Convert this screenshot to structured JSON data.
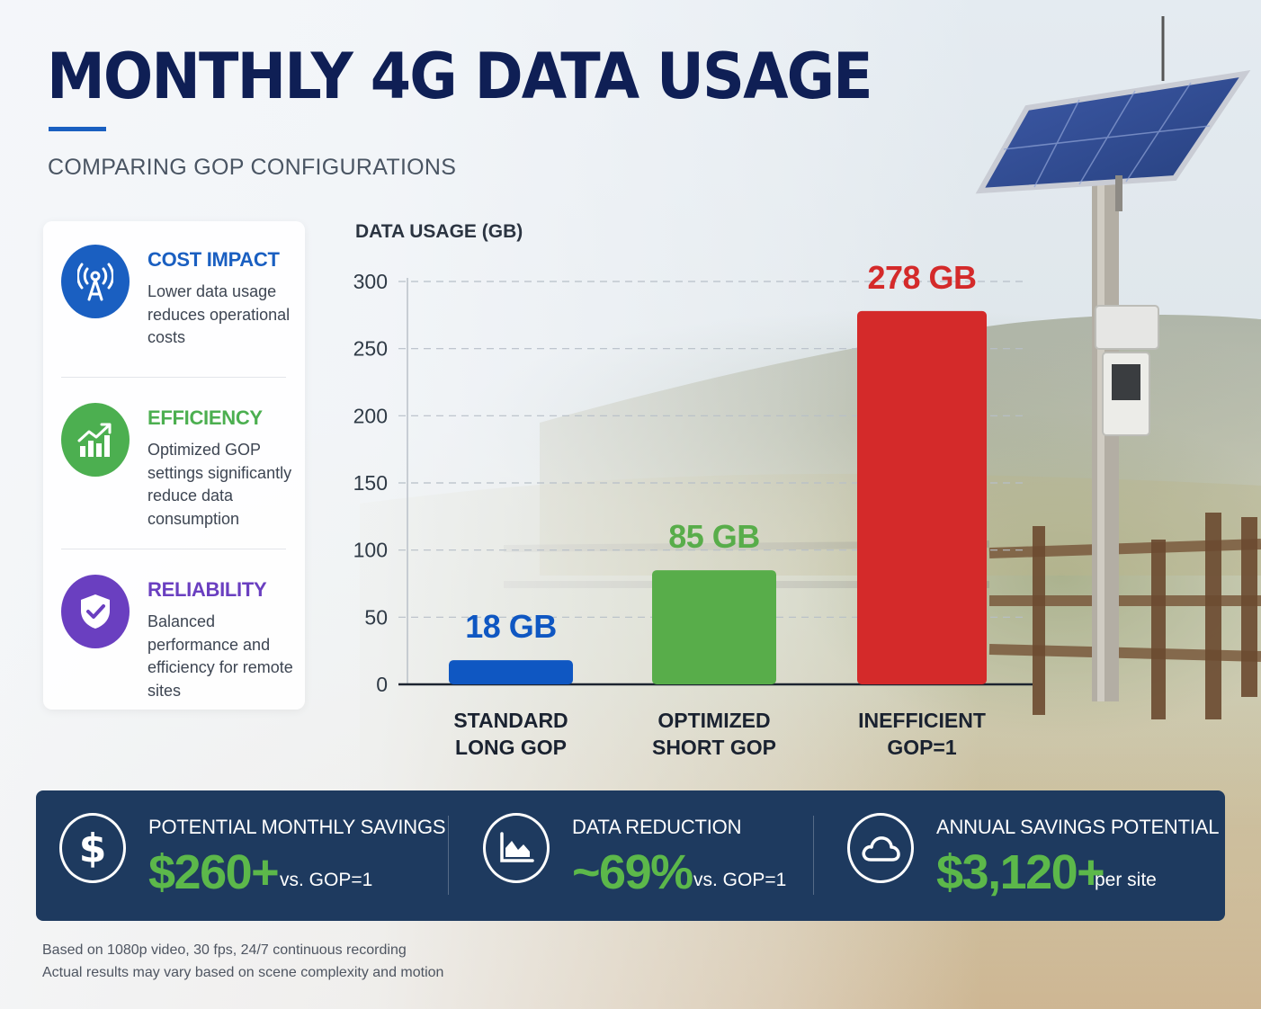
{
  "header": {
    "title": "MONTHLY 4G DATA USAGE",
    "subtitle": "COMPARING GOP CONFIGURATIONS"
  },
  "features": [
    {
      "title": "COST IMPACT",
      "text": "Lower data usage reduces operational costs",
      "color": "#1a5fc1",
      "icon": "antenna-icon"
    },
    {
      "title": "EFFICIENCY",
      "text": "Optimized GOP settings significantly reduce data consumption",
      "color": "#4caf50",
      "icon": "growth-chart-icon"
    },
    {
      "title": "RELIABILITY",
      "text": "Balanced performance and efficiency for remote sites",
      "color": "#6a3fc0",
      "icon": "shield-check-icon"
    }
  ],
  "chart_data": {
    "type": "bar",
    "ylabel": "DATA USAGE (GB)",
    "ylim": [
      0,
      300
    ],
    "yticks": [
      0,
      50,
      100,
      150,
      200,
      250,
      300
    ],
    "categories": [
      "STANDARD\nLONG GOP",
      "OPTIMIZED\nSHORT GOP",
      "INEFFICIENT\nGOP=1"
    ],
    "values": [
      18,
      85,
      278
    ],
    "data_labels": [
      "18 GB",
      "85 GB",
      "278 GB"
    ],
    "colors": [
      "#0f57c2",
      "#58ad4a",
      "#d42a2a"
    ],
    "grid": true
  },
  "stats": [
    {
      "label": "POTENTIAL MONTHLY SAVINGS",
      "value": "$260+",
      "suffix": "vs. GOP=1",
      "icon": "dollar-icon"
    },
    {
      "label": "DATA REDUCTION",
      "value": "~69%",
      "suffix": "vs. GOP=1",
      "icon": "area-chart-icon"
    },
    {
      "label": "ANNUAL SAVINGS POTENTIAL",
      "value": "$3,120+",
      "suffix": "per site",
      "icon": "cloud-icon"
    }
  ],
  "footnotes": [
    "Based on 1080p video, 30 fps, 24/7 continuous recording",
    "Actual results may vary based on scene complexity and motion"
  ]
}
